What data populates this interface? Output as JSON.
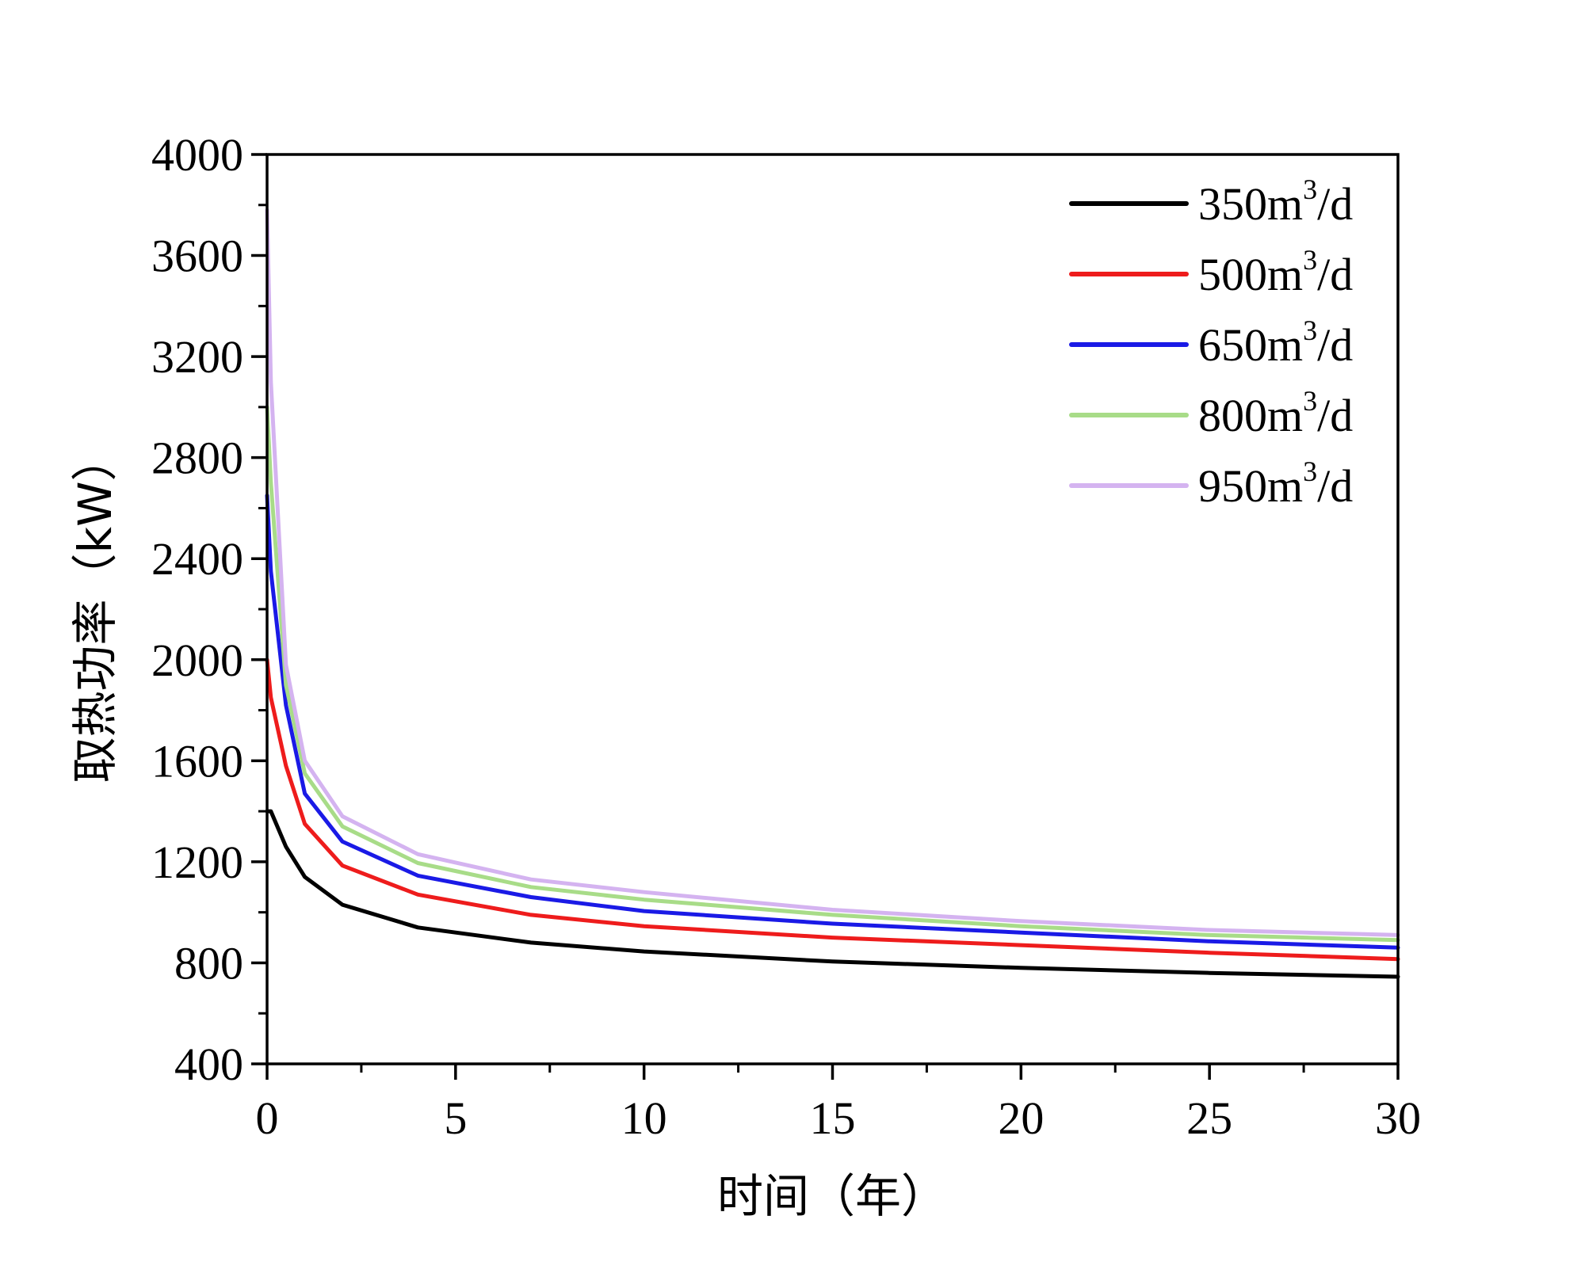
{
  "chart_data": {
    "type": "line",
    "title": "",
    "xlabel": "时间（年）",
    "ylabel": "取热功率（kW）",
    "xlim": [
      0,
      30
    ],
    "ylim": [
      400,
      4000
    ],
    "xticks": [
      0,
      5,
      10,
      15,
      20,
      25,
      30
    ],
    "yticks": [
      400,
      800,
      1200,
      1600,
      2000,
      2400,
      2800,
      3200,
      3600,
      4000
    ],
    "grid": false,
    "legend_position": "top-right",
    "x": [
      0,
      0.1,
      0.5,
      1,
      2,
      4,
      7,
      10,
      15,
      20,
      25,
      30
    ],
    "series": [
      {
        "name": "350m3/d",
        "label_base": "350m",
        "label_sup": "3",
        "label_tail": "/d",
        "color": "#000000",
        "values": [
          1400,
          1400,
          1260,
          1140,
          1030,
          940,
          880,
          845,
          805,
          780,
          760,
          745
        ]
      },
      {
        "name": "500m3/d",
        "label_base": "500m",
        "label_sup": "3",
        "label_tail": "/d",
        "color": "#ee1c1c",
        "values": [
          2000,
          1850,
          1580,
          1350,
          1185,
          1070,
          990,
          945,
          900,
          870,
          840,
          815
        ]
      },
      {
        "name": "650m3/d",
        "label_base": "650m",
        "label_sup": "3",
        "label_tail": "/d",
        "color": "#1a1ae6",
        "values": [
          2650,
          2350,
          1820,
          1470,
          1280,
          1145,
          1060,
          1005,
          955,
          920,
          885,
          860
        ]
      },
      {
        "name": "800m3/d",
        "label_base": "800m",
        "label_sup": "3",
        "label_tail": "/d",
        "color": "#a8dc88",
        "values": [
          3000,
          2700,
          1900,
          1550,
          1340,
          1195,
          1100,
          1050,
          990,
          945,
          910,
          890
        ]
      },
      {
        "name": "950m3/d",
        "label_base": "950m",
        "label_sup": "3",
        "label_tail": "/d",
        "color": "#d4b3f0",
        "values": [
          3780,
          3100,
          1980,
          1600,
          1380,
          1230,
          1130,
          1080,
          1010,
          965,
          930,
          910
        ]
      }
    ]
  }
}
